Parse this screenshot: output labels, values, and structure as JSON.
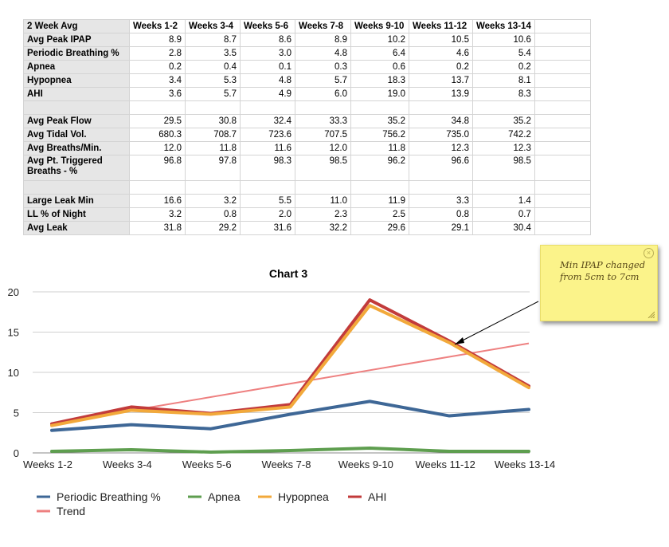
{
  "table": {
    "header": [
      "2 Week Avg",
      "Weeks 1-2",
      "Weeks 3-4",
      "Weeks 5-6",
      "Weeks 7-8",
      "Weeks 9-10",
      "Weeks 11-12",
      "Weeks 13-14"
    ],
    "groups": [
      [
        {
          "label": "Avg Peak IPAP",
          "values": [
            "8.9",
            "8.7",
            "8.6",
            "8.9",
            "10.2",
            "10.5",
            "10.6"
          ]
        },
        {
          "label": "Periodic Breathing %",
          "values": [
            "2.8",
            "3.5",
            "3.0",
            "4.8",
            "6.4",
            "4.6",
            "5.4"
          ]
        },
        {
          "label": "Apnea",
          "values": [
            "0.2",
            "0.4",
            "0.1",
            "0.3",
            "0.6",
            "0.2",
            "0.2"
          ]
        },
        {
          "label": "Hypopnea",
          "values": [
            "3.4",
            "5.3",
            "4.8",
            "5.7",
            "18.3",
            "13.7",
            "8.1"
          ]
        },
        {
          "label": "AHI",
          "values": [
            "3.6",
            "5.7",
            "4.9",
            "6.0",
            "19.0",
            "13.9",
            "8.3"
          ]
        }
      ],
      [
        {
          "label": "Avg Peak Flow",
          "values": [
            "29.5",
            "30.8",
            "32.4",
            "33.3",
            "35.2",
            "34.8",
            "35.2"
          ]
        },
        {
          "label": "Avg Tidal Vol.",
          "values": [
            "680.3",
            "708.7",
            "723.6",
            "707.5",
            "756.2",
            "735.0",
            "742.2"
          ]
        },
        {
          "label": "Avg Breaths/Min.",
          "values": [
            "12.0",
            "11.8",
            "11.6",
            "12.0",
            "11.8",
            "12.3",
            "12.3"
          ]
        },
        {
          "label": "Avg Pt. Triggered Breaths - %",
          "values": [
            "96.8",
            "97.8",
            "98.3",
            "98.5",
            "96.2",
            "96.6",
            "98.5"
          ]
        }
      ],
      [
        {
          "label": "Large Leak Min",
          "values": [
            "16.6",
            "3.2",
            "5.5",
            "11.0",
            "11.9",
            "3.3",
            "1.4"
          ]
        },
        {
          "label": "LL % of Night",
          "values": [
            "3.2",
            "0.8",
            "2.0",
            "2.3",
            "2.5",
            "0.8",
            "0.7"
          ]
        },
        {
          "label": "Avg Leak",
          "values": [
            "31.8",
            "29.2",
            "31.6",
            "32.2",
            "29.6",
            "29.1",
            "30.4"
          ]
        }
      ]
    ]
  },
  "chart_data": {
    "type": "line",
    "title": "Chart 3",
    "categories": [
      "Weeks 1-2",
      "Weeks 3-4",
      "Weeks 5-6",
      "Weeks 7-8",
      "Weeks 9-10",
      "Weeks 11-12",
      "Weeks 13-14"
    ],
    "ylim": [
      0,
      20
    ],
    "yticks": [
      0,
      5,
      10,
      15,
      20
    ],
    "series": [
      {
        "name": "Periodic Breathing %",
        "color": "#3e6796",
        "values": [
          2.8,
          3.5,
          3.0,
          4.8,
          6.4,
          4.6,
          5.4
        ]
      },
      {
        "name": "Apnea",
        "color": "#5e9e4f",
        "values": [
          0.2,
          0.4,
          0.1,
          0.3,
          0.6,
          0.2,
          0.2
        ]
      },
      {
        "name": "Hypopnea",
        "color": "#f2a93b",
        "values": [
          3.4,
          5.3,
          4.8,
          5.7,
          18.3,
          13.7,
          8.1
        ]
      },
      {
        "name": "AHI",
        "color": "#c23b3b",
        "values": [
          3.6,
          5.7,
          4.9,
          6.0,
          19.0,
          13.9,
          8.3
        ]
      }
    ],
    "trend": {
      "name": "Trend",
      "color": "#ee8080",
      "start": 3.6,
      "end": 13.6
    }
  },
  "note": {
    "text": "Min IPAP changed from 5cm to 7cm"
  }
}
